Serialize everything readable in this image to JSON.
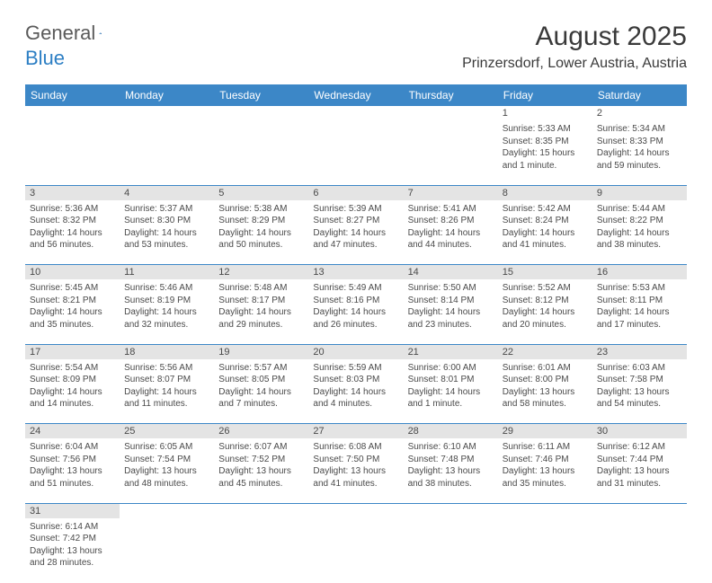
{
  "logo": {
    "general": "General",
    "blue": "Blue"
  },
  "title": "August 2025",
  "location": "Prinzersdorf, Lower Austria, Austria",
  "dayHeaders": [
    "Sunday",
    "Monday",
    "Tuesday",
    "Wednesday",
    "Thursday",
    "Friday",
    "Saturday"
  ],
  "colors": {
    "headerBg": "#3c87c7",
    "dayNumBg": "#e4e4e4",
    "text": "#4a4a4a",
    "rowBorder": "#3c87c7"
  },
  "weeks": [
    {
      "first": true,
      "days": [
        null,
        null,
        null,
        null,
        null,
        {
          "n": "1",
          "sunrise": "Sunrise: 5:33 AM",
          "sunset": "Sunset: 8:35 PM",
          "day1": "Daylight: 15 hours",
          "day2": "and 1 minute."
        },
        {
          "n": "2",
          "sunrise": "Sunrise: 5:34 AM",
          "sunset": "Sunset: 8:33 PM",
          "day1": "Daylight: 14 hours",
          "day2": "and 59 minutes."
        }
      ]
    },
    {
      "days": [
        {
          "n": "3",
          "sunrise": "Sunrise: 5:36 AM",
          "sunset": "Sunset: 8:32 PM",
          "day1": "Daylight: 14 hours",
          "day2": "and 56 minutes."
        },
        {
          "n": "4",
          "sunrise": "Sunrise: 5:37 AM",
          "sunset": "Sunset: 8:30 PM",
          "day1": "Daylight: 14 hours",
          "day2": "and 53 minutes."
        },
        {
          "n": "5",
          "sunrise": "Sunrise: 5:38 AM",
          "sunset": "Sunset: 8:29 PM",
          "day1": "Daylight: 14 hours",
          "day2": "and 50 minutes."
        },
        {
          "n": "6",
          "sunrise": "Sunrise: 5:39 AM",
          "sunset": "Sunset: 8:27 PM",
          "day1": "Daylight: 14 hours",
          "day2": "and 47 minutes."
        },
        {
          "n": "7",
          "sunrise": "Sunrise: 5:41 AM",
          "sunset": "Sunset: 8:26 PM",
          "day1": "Daylight: 14 hours",
          "day2": "and 44 minutes."
        },
        {
          "n": "8",
          "sunrise": "Sunrise: 5:42 AM",
          "sunset": "Sunset: 8:24 PM",
          "day1": "Daylight: 14 hours",
          "day2": "and 41 minutes."
        },
        {
          "n": "9",
          "sunrise": "Sunrise: 5:44 AM",
          "sunset": "Sunset: 8:22 PM",
          "day1": "Daylight: 14 hours",
          "day2": "and 38 minutes."
        }
      ]
    },
    {
      "days": [
        {
          "n": "10",
          "sunrise": "Sunrise: 5:45 AM",
          "sunset": "Sunset: 8:21 PM",
          "day1": "Daylight: 14 hours",
          "day2": "and 35 minutes."
        },
        {
          "n": "11",
          "sunrise": "Sunrise: 5:46 AM",
          "sunset": "Sunset: 8:19 PM",
          "day1": "Daylight: 14 hours",
          "day2": "and 32 minutes."
        },
        {
          "n": "12",
          "sunrise": "Sunrise: 5:48 AM",
          "sunset": "Sunset: 8:17 PM",
          "day1": "Daylight: 14 hours",
          "day2": "and 29 minutes."
        },
        {
          "n": "13",
          "sunrise": "Sunrise: 5:49 AM",
          "sunset": "Sunset: 8:16 PM",
          "day1": "Daylight: 14 hours",
          "day2": "and 26 minutes."
        },
        {
          "n": "14",
          "sunrise": "Sunrise: 5:50 AM",
          "sunset": "Sunset: 8:14 PM",
          "day1": "Daylight: 14 hours",
          "day2": "and 23 minutes."
        },
        {
          "n": "15",
          "sunrise": "Sunrise: 5:52 AM",
          "sunset": "Sunset: 8:12 PM",
          "day1": "Daylight: 14 hours",
          "day2": "and 20 minutes."
        },
        {
          "n": "16",
          "sunrise": "Sunrise: 5:53 AM",
          "sunset": "Sunset: 8:11 PM",
          "day1": "Daylight: 14 hours",
          "day2": "and 17 minutes."
        }
      ]
    },
    {
      "days": [
        {
          "n": "17",
          "sunrise": "Sunrise: 5:54 AM",
          "sunset": "Sunset: 8:09 PM",
          "day1": "Daylight: 14 hours",
          "day2": "and 14 minutes."
        },
        {
          "n": "18",
          "sunrise": "Sunrise: 5:56 AM",
          "sunset": "Sunset: 8:07 PM",
          "day1": "Daylight: 14 hours",
          "day2": "and 11 minutes."
        },
        {
          "n": "19",
          "sunrise": "Sunrise: 5:57 AM",
          "sunset": "Sunset: 8:05 PM",
          "day1": "Daylight: 14 hours",
          "day2": "and 7 minutes."
        },
        {
          "n": "20",
          "sunrise": "Sunrise: 5:59 AM",
          "sunset": "Sunset: 8:03 PM",
          "day1": "Daylight: 14 hours",
          "day2": "and 4 minutes."
        },
        {
          "n": "21",
          "sunrise": "Sunrise: 6:00 AM",
          "sunset": "Sunset: 8:01 PM",
          "day1": "Daylight: 14 hours",
          "day2": "and 1 minute."
        },
        {
          "n": "22",
          "sunrise": "Sunrise: 6:01 AM",
          "sunset": "Sunset: 8:00 PM",
          "day1": "Daylight: 13 hours",
          "day2": "and 58 minutes."
        },
        {
          "n": "23",
          "sunrise": "Sunrise: 6:03 AM",
          "sunset": "Sunset: 7:58 PM",
          "day1": "Daylight: 13 hours",
          "day2": "and 54 minutes."
        }
      ]
    },
    {
      "days": [
        {
          "n": "24",
          "sunrise": "Sunrise: 6:04 AM",
          "sunset": "Sunset: 7:56 PM",
          "day1": "Daylight: 13 hours",
          "day2": "and 51 minutes."
        },
        {
          "n": "25",
          "sunrise": "Sunrise: 6:05 AM",
          "sunset": "Sunset: 7:54 PM",
          "day1": "Daylight: 13 hours",
          "day2": "and 48 minutes."
        },
        {
          "n": "26",
          "sunrise": "Sunrise: 6:07 AM",
          "sunset": "Sunset: 7:52 PM",
          "day1": "Daylight: 13 hours",
          "day2": "and 45 minutes."
        },
        {
          "n": "27",
          "sunrise": "Sunrise: 6:08 AM",
          "sunset": "Sunset: 7:50 PM",
          "day1": "Daylight: 13 hours",
          "day2": "and 41 minutes."
        },
        {
          "n": "28",
          "sunrise": "Sunrise: 6:10 AM",
          "sunset": "Sunset: 7:48 PM",
          "day1": "Daylight: 13 hours",
          "day2": "and 38 minutes."
        },
        {
          "n": "29",
          "sunrise": "Sunrise: 6:11 AM",
          "sunset": "Sunset: 7:46 PM",
          "day1": "Daylight: 13 hours",
          "day2": "and 35 minutes."
        },
        {
          "n": "30",
          "sunrise": "Sunrise: 6:12 AM",
          "sunset": "Sunset: 7:44 PM",
          "day1": "Daylight: 13 hours",
          "day2": "and 31 minutes."
        }
      ]
    },
    {
      "noBorder": true,
      "days": [
        {
          "n": "31",
          "sunrise": "Sunrise: 6:14 AM",
          "sunset": "Sunset: 7:42 PM",
          "day1": "Daylight: 13 hours",
          "day2": "and 28 minutes."
        },
        null,
        null,
        null,
        null,
        null,
        null
      ]
    }
  ]
}
